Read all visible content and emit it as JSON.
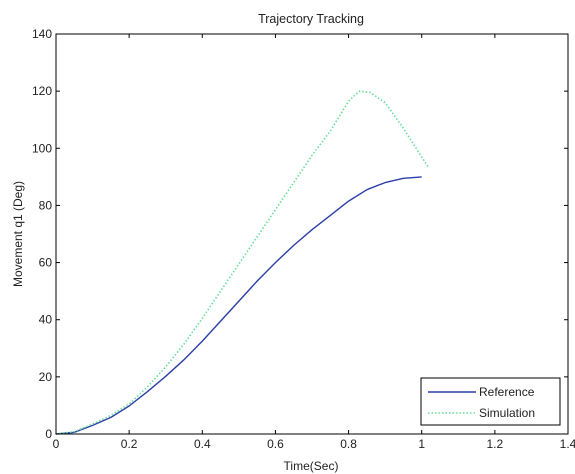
{
  "chart_data": {
    "type": "line",
    "title": "Trajectory Tracking",
    "xlabel": "Time(Sec)",
    "ylabel": "Movement q1 (Deg)",
    "xlim": [
      0,
      1.4
    ],
    "ylim": [
      0,
      140
    ],
    "xticks": [
      0,
      0.2,
      0.4,
      0.6,
      0.8,
      1,
      1.2,
      1.4
    ],
    "yticks": [
      0,
      20,
      40,
      60,
      80,
      100,
      120,
      140
    ],
    "xtick_labels": [
      "0",
      "0.2",
      "0.4",
      "0.6",
      "0.8",
      "1",
      "1.2",
      "1.4"
    ],
    "ytick_labels": [
      "0",
      "20",
      "40",
      "60",
      "80",
      "100",
      "120",
      "140"
    ],
    "grid": false,
    "legend_position": "bottom-right",
    "series": [
      {
        "name": "Reference",
        "color": "#2b3fa8",
        "style": "solid",
        "x": [
          0,
          0.05,
          0.1,
          0.15,
          0.2,
          0.25,
          0.3,
          0.35,
          0.4,
          0.45,
          0.5,
          0.55,
          0.6,
          0.65,
          0.7,
          0.75,
          0.8,
          0.85,
          0.9,
          0.95,
          1.0
        ],
        "y": [
          0,
          0.6,
          3.0,
          5.8,
          9.8,
          14.8,
          20.2,
          26.0,
          32.5,
          39.5,
          46.5,
          53.5,
          60.0,
          66.0,
          71.5,
          76.5,
          81.5,
          85.5,
          88.0,
          89.5,
          90.0
        ]
      },
      {
        "name": "Simulation",
        "color": "#66dd99",
        "style": "dotted",
        "x": [
          0,
          0.05,
          0.1,
          0.15,
          0.2,
          0.25,
          0.3,
          0.35,
          0.4,
          0.45,
          0.5,
          0.55,
          0.6,
          0.65,
          0.7,
          0.75,
          0.8,
          0.83,
          0.86,
          0.9,
          0.95,
          1.0,
          1.02
        ],
        "y": [
          0,
          0.8,
          3.5,
          6.5,
          10.5,
          16.5,
          23.5,
          31.5,
          40.5,
          50.0,
          59.5,
          69.0,
          78.5,
          88.0,
          97.5,
          106.0,
          116.5,
          120.0,
          119.5,
          116.0,
          107.0,
          97.0,
          93.0
        ]
      }
    ]
  }
}
